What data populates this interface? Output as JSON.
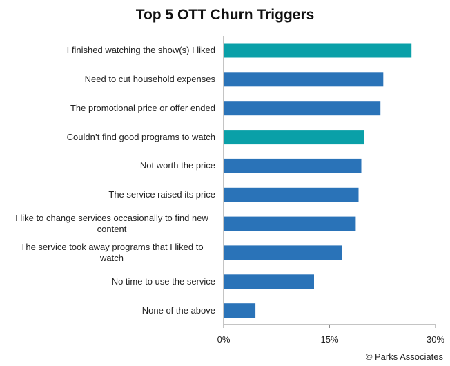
{
  "chart_data": {
    "type": "bar",
    "orientation": "horizontal",
    "title": "Top 5 OTT Churn Triggers",
    "categories": [
      "I finished watching the show(s) I liked",
      "Need to cut household expenses",
      "The promotional price or offer ended",
      "Couldn’t find good programs to watch",
      "Not worth the price",
      "The service raised its price",
      "I like to change services occasionally to find new content",
      "The service took away programs that I liked to watch",
      "No time to use the service",
      "None of the above"
    ],
    "values": [
      26.6,
      22.6,
      22.2,
      19.9,
      19.5,
      19.1,
      18.7,
      16.8,
      12.8,
      4.5
    ],
    "highlighted": [
      true,
      false,
      false,
      true,
      false,
      false,
      false,
      false,
      false,
      false
    ],
    "xlim": [
      0,
      30
    ],
    "xticks": [
      "0%",
      "15%",
      "30%"
    ],
    "xtick_values": [
      0,
      15,
      30
    ],
    "xlabel": "",
    "ylabel": "",
    "grid": false,
    "colors": {
      "default": "#2a73b8",
      "highlight": "#0aa0a8",
      "axis": "#8a8a8a"
    }
  },
  "footer": {
    "copyright": "© Parks Associates"
  }
}
